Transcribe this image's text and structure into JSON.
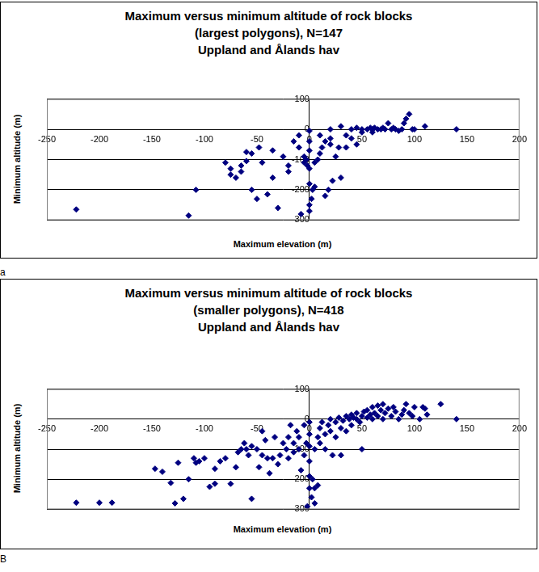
{
  "chart_data": [
    {
      "type": "scatter",
      "title": [
        "Maximum versus minimum altitude of rock blocks",
        "(largest polygons), N=147",
        "Uppland and Ålands hav"
      ],
      "x_label": "Maximum elevation (m)",
      "y_label": "Minimum altitude (m)",
      "panel_label": "a",
      "color": "#000080",
      "marker": "diamond",
      "grid": true,
      "xlim": [
        -250,
        200
      ],
      "xticks": [
        -250,
        -200,
        -150,
        -100,
        -50,
        0,
        50,
        100,
        150,
        200
      ],
      "ylim": [
        -300,
        100
      ],
      "yticks": [
        -300,
        -200,
        -100,
        0,
        100
      ],
      "x": [
        -222,
        -115,
        -108,
        -80,
        -75,
        -75,
        -70,
        -65,
        -65,
        -60,
        -60,
        -55,
        -55,
        -50,
        -48,
        -45,
        -40,
        -35,
        -35,
        -30,
        -25,
        -20,
        -20,
        -15,
        -10,
        -10,
        -8,
        -5,
        -5,
        -3,
        -2,
        0,
        0,
        0,
        0,
        0,
        0,
        0,
        2,
        3,
        5,
        5,
        8,
        10,
        10,
        12,
        15,
        15,
        18,
        20,
        20,
        20,
        22,
        25,
        28,
        30,
        30,
        35,
        35,
        40,
        40,
        45,
        45,
        50,
        50,
        55,
        58,
        60,
        60,
        62,
        65,
        68,
        70,
        72,
        75,
        78,
        80,
        82,
        85,
        88,
        90,
        92,
        95,
        98,
        100,
        110,
        140
      ],
      "values": [
        -265,
        -285,
        -200,
        -110,
        -130,
        -150,
        -160,
        -140,
        -120,
        -105,
        -75,
        -80,
        -200,
        -230,
        -60,
        -110,
        -215,
        -70,
        -160,
        -260,
        -90,
        -120,
        -140,
        -40,
        -20,
        -60,
        -280,
        -90,
        -110,
        -100,
        -120,
        -5,
        -40,
        -70,
        -130,
        -180,
        -250,
        -270,
        -230,
        -200,
        -190,
        -110,
        -100,
        -80,
        -20,
        -60,
        -40,
        -220,
        -200,
        -30,
        -50,
        0,
        -170,
        -90,
        -60,
        -160,
        10,
        -20,
        -60,
        0,
        -30,
        -50,
        5,
        0,
        -10,
        0,
        5,
        0,
        -10,
        5,
        0,
        0,
        5,
        0,
        20,
        0,
        5,
        0,
        -5,
        0,
        20,
        35,
        50,
        0,
        0,
        10,
        0
      ]
    },
    {
      "type": "scatter",
      "title": [
        "Maximum versus minimum altitude of rock blocks",
        "(smaller polygons), N=418",
        "Uppland and Ålands hav"
      ],
      "x_label": "Maximum elevation (m)",
      "y_label": "Minimum altitude (m)",
      "panel_label": "B",
      "color": "#000080",
      "marker": "diamond",
      "grid": true,
      "xlim": [
        -250,
        200
      ],
      "xticks": [
        -250,
        -200,
        -150,
        -100,
        -50,
        0,
        50,
        100,
        150,
        200
      ],
      "ylim": [
        -300,
        100
      ],
      "yticks": [
        -300,
        -200,
        -100,
        0,
        100
      ],
      "x": [
        -222,
        -200,
        -188,
        -147,
        -140,
        -132,
        -128,
        -125,
        -120,
        -115,
        -110,
        -108,
        -105,
        -100,
        -95,
        -90,
        -90,
        -85,
        -80,
        -75,
        -70,
        -68,
        -65,
        -62,
        -60,
        -58,
        -55,
        -55,
        -50,
        -48,
        -45,
        -45,
        -42,
        -40,
        -38,
        -35,
        -33,
        -30,
        -28,
        -25,
        -22,
        -20,
        -20,
        -18,
        -15,
        -15,
        -12,
        -10,
        -10,
        -8,
        -5,
        -5,
        -3,
        -2,
        0,
        0,
        0,
        0,
        0,
        0,
        2,
        3,
        5,
        5,
        8,
        5,
        8,
        10,
        10,
        12,
        15,
        15,
        18,
        20,
        20,
        22,
        25,
        25,
        28,
        30,
        30,
        32,
        35,
        35,
        38,
        40,
        40,
        42,
        45,
        45,
        48,
        50,
        50,
        52,
        55,
        55,
        58,
        60,
        60,
        62,
        65,
        65,
        68,
        70,
        70,
        72,
        75,
        78,
        80,
        82,
        85,
        88,
        90,
        92,
        95,
        98,
        100,
        105,
        108,
        110,
        112,
        125,
        140
      ],
      "values": [
        -278,
        -278,
        -278,
        -165,
        -175,
        -212,
        -280,
        -145,
        -265,
        -200,
        -130,
        -145,
        -140,
        -130,
        -225,
        -215,
        -165,
        -140,
        -130,
        -215,
        -160,
        -110,
        -100,
        -80,
        -100,
        -120,
        -90,
        -265,
        -100,
        -160,
        -120,
        -40,
        -70,
        -130,
        -180,
        -130,
        -60,
        -150,
        -120,
        -80,
        -100,
        -130,
        -60,
        -20,
        -110,
        -80,
        -40,
        -100,
        -60,
        -170,
        -120,
        -20,
        -80,
        -290,
        -10,
        -50,
        -90,
        -140,
        -190,
        -230,
        -260,
        -200,
        -230,
        -280,
        -220,
        -100,
        -60,
        -30,
        -80,
        -10,
        -50,
        -100,
        -20,
        0,
        -40,
        -120,
        -10,
        -60,
        5,
        -30,
        -120,
        -5,
        10,
        -40,
        0,
        15,
        -20,
        5,
        0,
        20,
        -10,
        10,
        -100,
        25,
        5,
        30,
        15,
        0,
        40,
        20,
        10,
        45,
        30,
        0,
        50,
        20,
        35,
        10,
        40,
        25,
        0,
        15,
        30,
        50,
        20,
        10,
        40,
        0,
        40,
        35,
        15,
        50,
        0
      ]
    }
  ]
}
